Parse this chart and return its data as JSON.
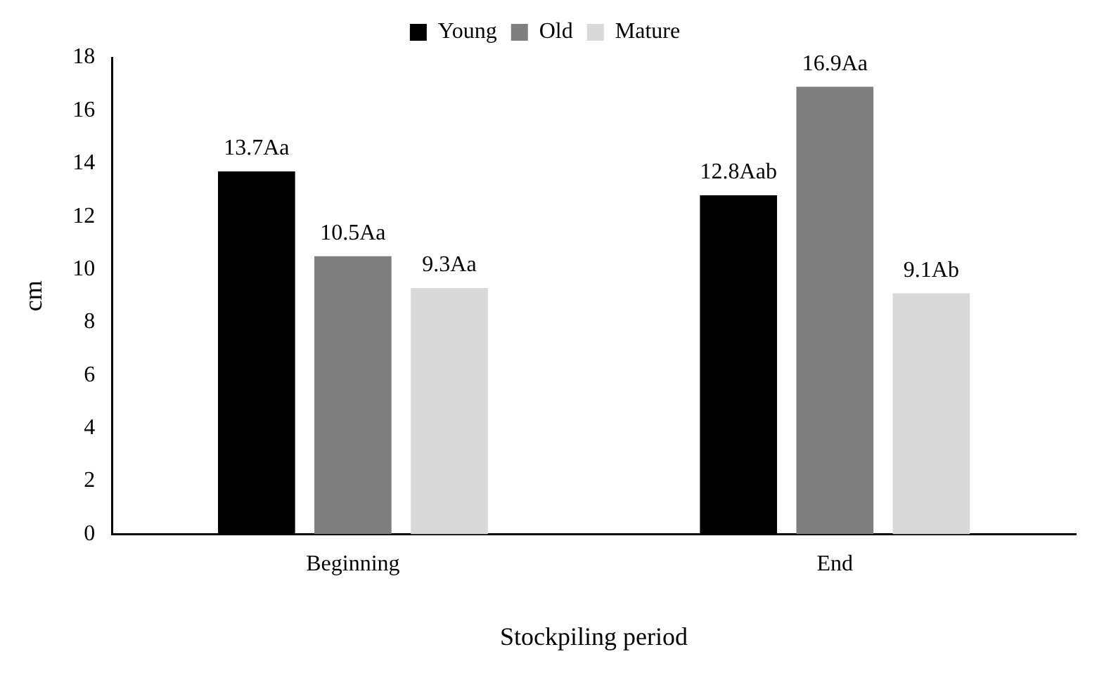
{
  "chart_data": {
    "type": "bar",
    "xlabel": "Stockpiling period",
    "ylabel": "cm",
    "categories": [
      "Beginning",
      "End"
    ],
    "series": [
      {
        "name": "Young",
        "color": "#000000",
        "values": [
          13.7,
          12.8
        ],
        "value_labels": [
          "13.7Aa",
          "12.8Aab"
        ]
      },
      {
        "name": "Old",
        "color": "#7f7f7f",
        "values": [
          10.5,
          16.9
        ],
        "value_labels": [
          "10.5Aa",
          "16.9Aa"
        ]
      },
      {
        "name": "Mature",
        "color": "#d9d9d9",
        "values": [
          9.3,
          9.1
        ],
        "value_labels": [
          "9.3Aa",
          "9.1Ab"
        ]
      }
    ],
    "ylim": [
      0,
      18
    ],
    "yticks": [
      0,
      2,
      4,
      6,
      8,
      10,
      12,
      14,
      16,
      18
    ],
    "grid": false,
    "legend": "top"
  }
}
